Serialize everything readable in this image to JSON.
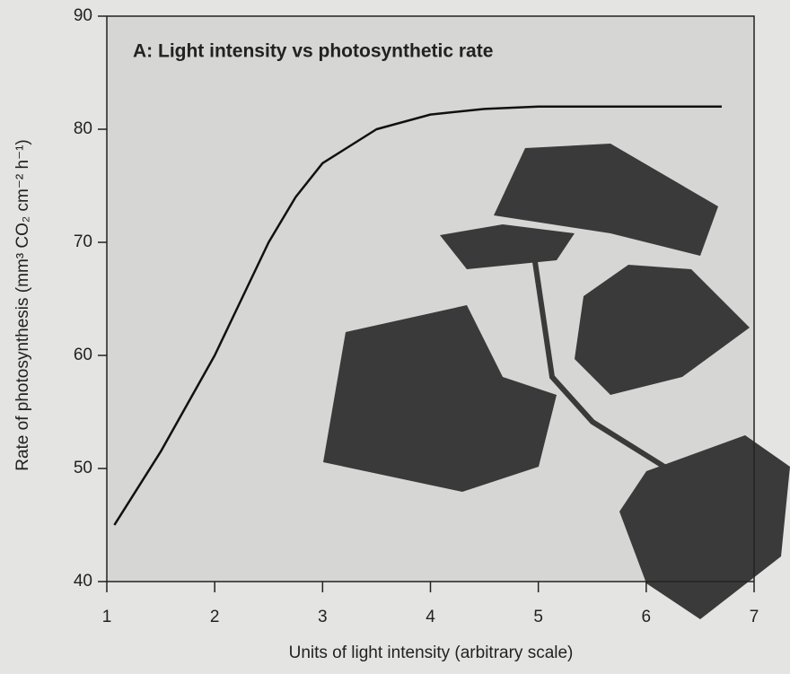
{
  "chart_data": {
    "type": "line",
    "title": "A: Light intensity vs photosynthetic rate",
    "x_label": "Units of light intensity  (arbitrary scale)",
    "y_label": "Rate of photosynthesis  (mm³ CO₂ cm⁻² h⁻¹)",
    "x": [
      1.07,
      1.5,
      2,
      2.25,
      2.5,
      2.75,
      3,
      3.5,
      4,
      4.5,
      5,
      6,
      6.7
    ],
    "series": [
      {
        "color": "#111111",
        "values": [
          45,
          51.5,
          60,
          65,
          70,
          74,
          77,
          80,
          81.3,
          81.8,
          82,
          82,
          82
        ]
      }
    ],
    "xlim": [
      1,
      7
    ],
    "xticks": [
      1,
      2,
      3,
      4,
      5,
      6,
      7
    ],
    "ylim": [
      40,
      90
    ],
    "yticks": [
      40,
      50,
      60,
      70,
      80,
      90
    ],
    "grid": false
  }
}
